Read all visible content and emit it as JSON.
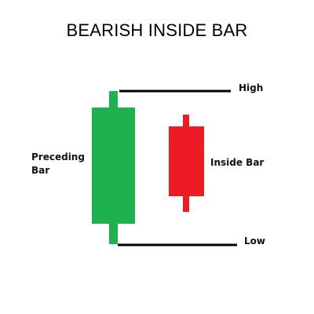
{
  "title": "BEARISH INSIDE BAR",
  "labels": {
    "high": "High",
    "low": "Low",
    "inside_bar": "Inside Bar",
    "preceding_line1": "Preceding",
    "preceding_line2": "Bar"
  },
  "colors": {
    "preceding_bar": "#1fb14e",
    "inside_bar": "#ed1c24",
    "reference_line": "#000000",
    "text": "#000000",
    "background": "#ffffff"
  }
}
